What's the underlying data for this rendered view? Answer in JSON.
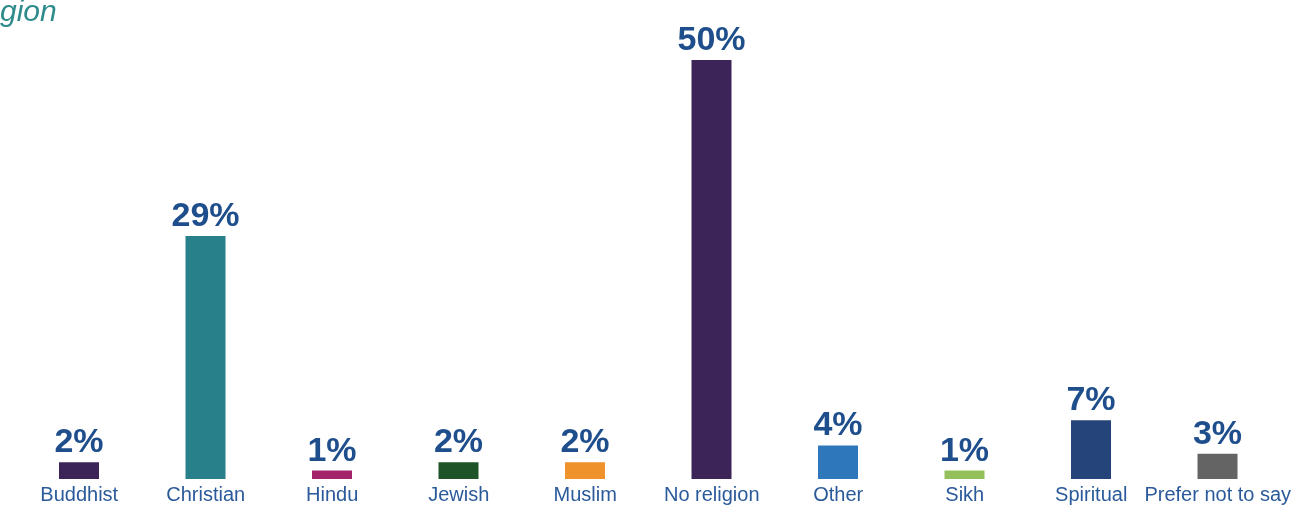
{
  "chart_data": {
    "type": "bar",
    "title": "gion",
    "categories": [
      "Buddhist",
      "Christian",
      "Hindu",
      "Jewish",
      "Muslim",
      "No religion",
      "Other",
      "Sikh",
      "Spiritual",
      "Prefer not to say"
    ],
    "values": [
      2,
      29,
      1,
      2,
      2,
      50,
      4,
      1,
      7,
      3
    ],
    "value_labels": [
      "2%",
      "29%",
      "1%",
      "2%",
      "2%",
      "50%",
      "4%",
      "1%",
      "7%",
      "3%"
    ],
    "colors": [
      "#3c2459",
      "#27808a",
      "#a3236b",
      "#1e5228",
      "#f0922c",
      "#3c2459",
      "#2f77bb",
      "#93c05a",
      "#25447a",
      "#646464"
    ]
  }
}
